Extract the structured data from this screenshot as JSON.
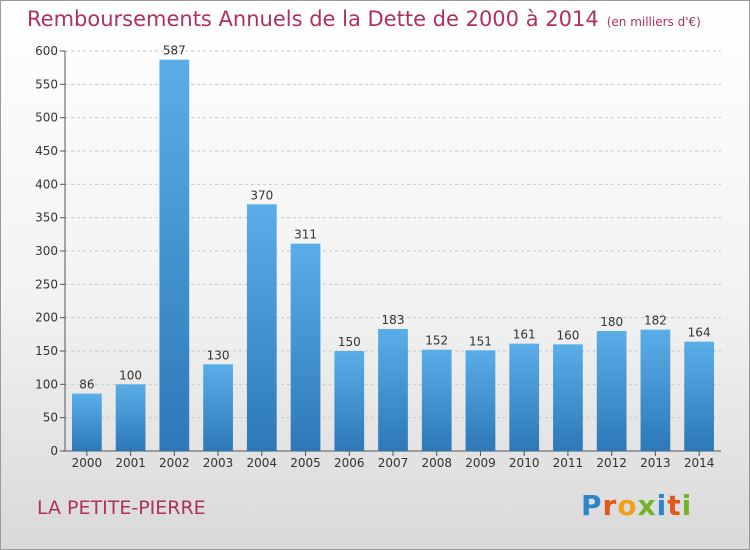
{
  "chart_data": {
    "type": "bar",
    "title": "Remboursements Annuels de la Dette de 2000 à 2014",
    "unit": "(en milliers d'€)",
    "categories": [
      "2000",
      "2001",
      "2002",
      "2003",
      "2004",
      "2005",
      "2006",
      "2007",
      "2008",
      "2009",
      "2010",
      "2011",
      "2012",
      "2013",
      "2014"
    ],
    "values": [
      86,
      100,
      587,
      130,
      370,
      311,
      150,
      183,
      152,
      151,
      161,
      160,
      180,
      182,
      164
    ],
    "ylim": [
      0,
      600
    ],
    "yticks": [
      0,
      50,
      100,
      150,
      200,
      250,
      300,
      350,
      400,
      450,
      500,
      550,
      600
    ],
    "grid": true,
    "bar_color_top": "#5aaee8",
    "bar_color_bottom": "#2d78b8"
  },
  "commune": "LA PETITE-PIERRE",
  "brand": {
    "letters": [
      {
        "ch": "P",
        "color": "#2a86c8"
      },
      {
        "ch": "r",
        "color": "#e2581c"
      },
      {
        "ch": "o",
        "color": "#f0a11b"
      },
      {
        "ch": "x",
        "color": "#74b22a"
      },
      {
        "ch": "i",
        "color": "#2a86c8"
      },
      {
        "ch": "t",
        "color": "#e2581c"
      },
      {
        "ch": "i",
        "color": "#74b22a"
      }
    ]
  }
}
